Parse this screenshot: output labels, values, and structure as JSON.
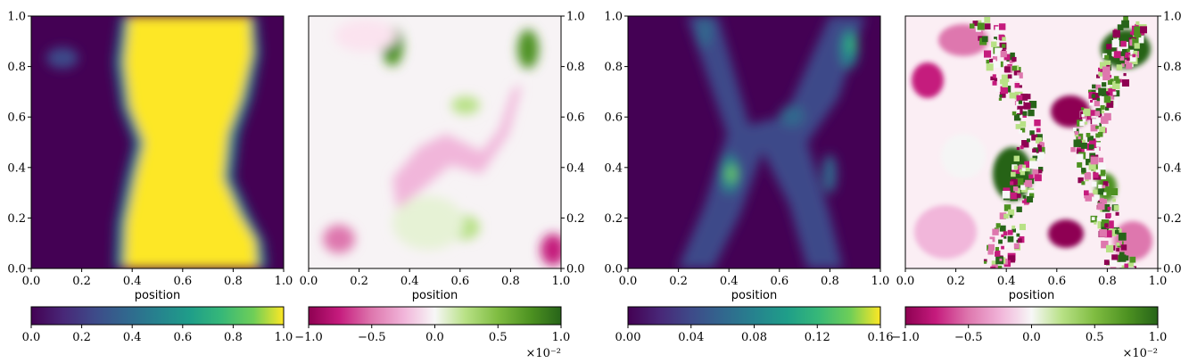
{
  "chart_data": [
    {
      "type": "heatmap",
      "xlabel": "position",
      "ylabel": "",
      "xlim": [
        0,
        1
      ],
      "ylim": [
        0,
        1
      ],
      "x_ticks": [
        "0.0",
        "0.2",
        "0.4",
        "0.6",
        "0.8",
        "1.0"
      ],
      "y_ticks": [
        "0.0",
        "0.2",
        "0.4",
        "0.6",
        "0.8",
        "1.0"
      ],
      "y_axis_side": "left",
      "colormap": "viridis",
      "colorbar": {
        "range": [
          0,
          1
        ],
        "ticks": [
          "0.0",
          "0.2",
          "0.4",
          "0.6",
          "0.8",
          "1.0"
        ],
        "multiplier": ""
      },
      "description": "yellow band near x≈0.35–0.9, narrowing around y≈0.4–0.6, purple elsewhere"
    },
    {
      "type": "heatmap",
      "xlabel": "position",
      "ylabel": "",
      "xlim": [
        0,
        1
      ],
      "ylim": [
        0,
        1
      ],
      "x_ticks": [
        "0.0",
        "0.2",
        "0.4",
        "0.6",
        "0.8",
        "1.0"
      ],
      "y_ticks": [
        "0.0",
        "0.2",
        "0.4",
        "0.6",
        "0.8",
        "1.0"
      ],
      "y_axis_side": "right",
      "colormap": "PiYG",
      "colorbar": {
        "range": [
          -1,
          1
        ],
        "ticks": [
          "−1.0",
          "−0.5",
          "0.0",
          "0.5",
          "1.0"
        ],
        "multiplier": "×10⁻²"
      },
      "description": "mostly near-white with green spots at top (x≈0.33, 0.88) and mid, pink streaks along band edges"
    },
    {
      "type": "heatmap",
      "xlabel": "position",
      "ylabel": "",
      "xlim": [
        0,
        1
      ],
      "ylim": [
        0,
        1
      ],
      "x_ticks": [
        "0.0",
        "0.2",
        "0.4",
        "0.6",
        "0.8",
        "1.0"
      ],
      "y_ticks": [
        "0.0",
        "0.2",
        "0.4",
        "0.6",
        "0.8",
        "1.0"
      ],
      "y_axis_side": "left",
      "colormap": "viridis",
      "colorbar": {
        "range": [
          0,
          0.16
        ],
        "ticks": [
          "0.00",
          "0.04",
          "0.08",
          "0.12",
          "0.16"
        ],
        "multiplier": ""
      },
      "description": "dark purple background with X-shaped brighter teal bands crossing near center"
    },
    {
      "type": "heatmap",
      "xlabel": "position",
      "ylabel": "",
      "xlim": [
        0,
        1
      ],
      "ylim": [
        0,
        1
      ],
      "x_ticks": [
        "0.0",
        "0.2",
        "0.4",
        "0.6",
        "0.8",
        "1.0"
      ],
      "y_ticks": [
        "0.0",
        "0.2",
        "0.4",
        "0.6",
        "0.8",
        "1.0"
      ],
      "y_axis_side": "right",
      "colormap": "PiYG",
      "colorbar": {
        "range": [
          -1,
          1
        ],
        "ticks": [
          "−1.0",
          "−0.5",
          "0.0",
          "0.5",
          "1.0"
        ],
        "multiplier": "×10⁻²"
      },
      "description": "noisy pink/green pattern along an X shape, dark green blobs near (0.42,0.4) and (0.88,0.85), magenta blobs near (0.68,0.6) and (0.68,0.15)"
    }
  ]
}
